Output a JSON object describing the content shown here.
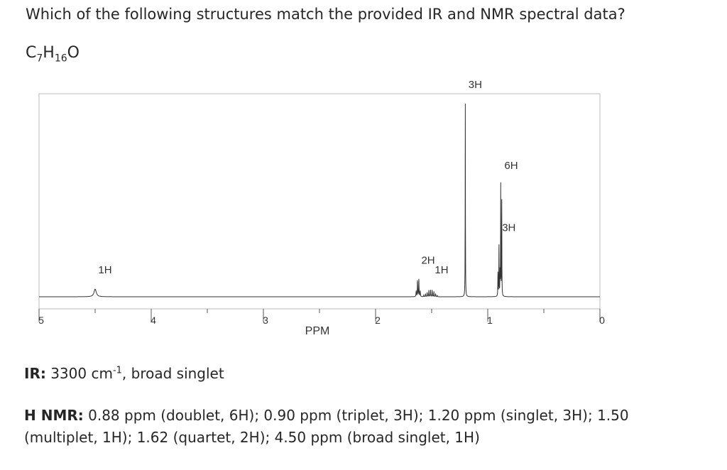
{
  "question": "Which of the following structures match the provided IR and NMR spectral data?",
  "formula": {
    "c_count": "7",
    "h_count": "16",
    "o": "O"
  },
  "ir": {
    "label": "IR:",
    "wavenumber": "3300 cm",
    "exponent": "-1",
    "description": ", broad singlet"
  },
  "nmr": {
    "label": "H NMR:",
    "text": "0.88 ppm (doublet, 6H); 0.90 ppm (triplet, 3H); 1.20 ppm (singlet, 3H); 1.50 (multiplet, 1H); 1.62 (quartet, 2H); 4.50 ppm (broad singlet, 1H)"
  },
  "chart_data": {
    "type": "line",
    "title": "",
    "xlabel": "PPM",
    "ylabel": "",
    "xlim": [
      5,
      0
    ],
    "x_reversed": true,
    "x_ticks": [
      "5",
      "4",
      "3",
      "2",
      "1",
      "0"
    ],
    "grid": false,
    "peaks": [
      {
        "ppm": 4.5,
        "height": 0.04,
        "multiplicity": "broad singlet",
        "label": "1H"
      },
      {
        "ppm": 1.62,
        "height": 0.09,
        "multiplicity": "quartet",
        "label": "2H"
      },
      {
        "ppm": 1.5,
        "height": 0.04,
        "multiplicity": "multiplet",
        "label": "1H"
      },
      {
        "ppm": 1.2,
        "height": 1.0,
        "multiplicity": "singlet",
        "label": "3H"
      },
      {
        "ppm": 0.9,
        "height": 0.26,
        "multiplicity": "triplet",
        "label": "3H"
      },
      {
        "ppm": 0.88,
        "height": 0.58,
        "multiplicity": "doublet",
        "label": "6H"
      }
    ]
  }
}
